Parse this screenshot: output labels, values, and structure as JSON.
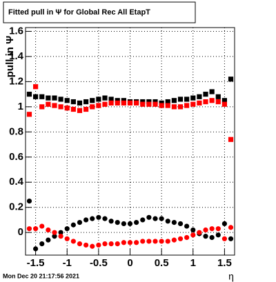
{
  "chart_data": {
    "type": "scatter",
    "title": "Fitted pull in  Ψ  for Global Rec All EtapT",
    "ylabel": "pull in  Ψ",
    "xlabel": "η",
    "footer": "Mon Dec 20 21:17:56 2021",
    "xlim": [
      -1.66,
      1.66
    ],
    "ylim": [
      -0.18,
      1.63
    ],
    "xticks": [
      -1.5,
      -1,
      -0.5,
      0,
      0.5,
      1,
      1.5
    ],
    "yticks": [
      0,
      0.2,
      0.4,
      0.6,
      0.8,
      1,
      1.2,
      1.4,
      1.6
    ],
    "grid": true,
    "x": [
      -1.6,
      -1.5,
      -1.4,
      -1.3,
      -1.2,
      -1.1,
      -1.0,
      -0.9,
      -0.8,
      -0.7,
      -0.6,
      -0.5,
      -0.4,
      -0.3,
      -0.2,
      -0.1,
      0,
      0.1,
      0.2,
      0.3,
      0.4,
      0.5,
      0.6,
      0.7,
      0.8,
      0.9,
      1.0,
      1.1,
      1.2,
      1.3,
      1.4,
      1.5,
      1.6
    ],
    "series": [
      {
        "color": "#000000",
        "marker": "square",
        "values": [
          1.1,
          1.08,
          1.08,
          1.07,
          1.07,
          1.06,
          1.05,
          1.04,
          1.03,
          1.04,
          1.05,
          1.06,
          1.07,
          1.06,
          1.05,
          1.05,
          1.04,
          1.04,
          1.04,
          1.04,
          1.04,
          1.03,
          1.04,
          1.05,
          1.06,
          1.06,
          1.07,
          1.08,
          1.1,
          1.12,
          1.08,
          1.05,
          1.22
        ]
      },
      {
        "color": "#ff0000",
        "marker": "square",
        "values": [
          0.94,
          1.16,
          1.0,
          1.02,
          1.01,
          1.0,
          0.99,
          0.98,
          0.97,
          0.98,
          1.0,
          1.01,
          1.02,
          1.03,
          1.03,
          1.03,
          1.03,
          1.03,
          1.02,
          1.02,
          1.02,
          1.01,
          1.01,
          1.0,
          1.0,
          1.01,
          1.02,
          1.03,
          1.04,
          1.05,
          1.04,
          1.02,
          0.74
        ]
      },
      {
        "color": "#000000",
        "marker": "circle",
        "values": [
          0.25,
          -0.13,
          -0.09,
          -0.06,
          -0.03,
          0.0,
          0.03,
          0.06,
          0.08,
          0.1,
          0.11,
          0.12,
          0.11,
          0.09,
          0.08,
          0.07,
          0.07,
          0.08,
          0.1,
          0.12,
          0.11,
          0.11,
          0.09,
          0.08,
          0.07,
          0.05,
          0.02,
          -0.01,
          -0.03,
          -0.04,
          -0.02,
          0.07,
          -0.05
        ]
      },
      {
        "color": "#ff0000",
        "marker": "circle",
        "values": [
          0.03,
          0.03,
          0.05,
          0.02,
          0.0,
          -0.03,
          -0.05,
          -0.07,
          -0.09,
          -0.1,
          -0.11,
          -0.1,
          -0.09,
          -0.09,
          -0.09,
          -0.08,
          -0.08,
          -0.08,
          -0.07,
          -0.07,
          -0.07,
          -0.07,
          -0.07,
          -0.06,
          -0.05,
          -0.04,
          -0.02,
          0.0,
          0.02,
          0.03,
          0.03,
          -0.05,
          0.04
        ]
      }
    ]
  }
}
